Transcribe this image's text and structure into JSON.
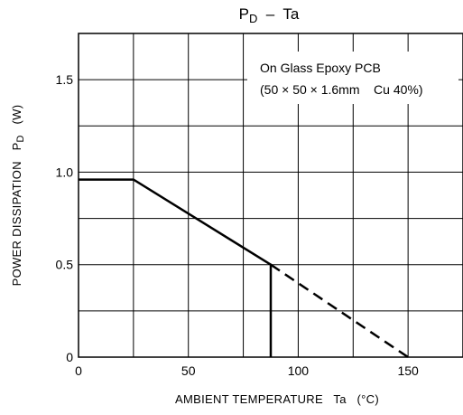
{
  "chart_data": {
    "type": "line",
    "title": {
      "main": "P",
      "sub": "D",
      "rest": "  –  Ta"
    },
    "ylabel": {
      "main": "POWER DISSIPATION   P",
      "sub": "D",
      "unit": "   (W)"
    },
    "xlabel": "AMBIENT TEMPERATURE   Ta   (°C)",
    "xlim": [
      0,
      175
    ],
    "ylim": [
      0,
      1.75
    ],
    "x_gridlines": [
      25,
      50,
      75,
      100,
      125,
      150
    ],
    "y_gridlines": [
      0.25,
      0.5,
      0.75,
      1.0,
      1.25,
      1.5
    ],
    "x_ticks": [
      {
        "value": 0,
        "label": "0"
      },
      {
        "value": 50,
        "label": "50"
      },
      {
        "value": 100,
        "label": "100"
      },
      {
        "value": 150,
        "label": "150"
      }
    ],
    "y_ticks": [
      {
        "value": 0,
        "label": "0"
      },
      {
        "value": 0.5,
        "label": "0.5"
      },
      {
        "value": 1.0,
        "label": "1.0"
      },
      {
        "value": 1.5,
        "label": "1.5"
      }
    ],
    "grid": true,
    "series": [
      {
        "style": "solid",
        "x": [
          0,
          25,
          87.5,
          87.5
        ],
        "y": [
          0.96,
          0.96,
          0.5,
          0
        ]
      },
      {
        "style": "dashed",
        "x": [
          87.5,
          150
        ],
        "y": [
          0.5,
          0
        ]
      }
    ],
    "annotations": [
      "On Glass Epoxy PCB",
      "(50 × 50 × 1.6mm    Cu 40%)"
    ]
  }
}
